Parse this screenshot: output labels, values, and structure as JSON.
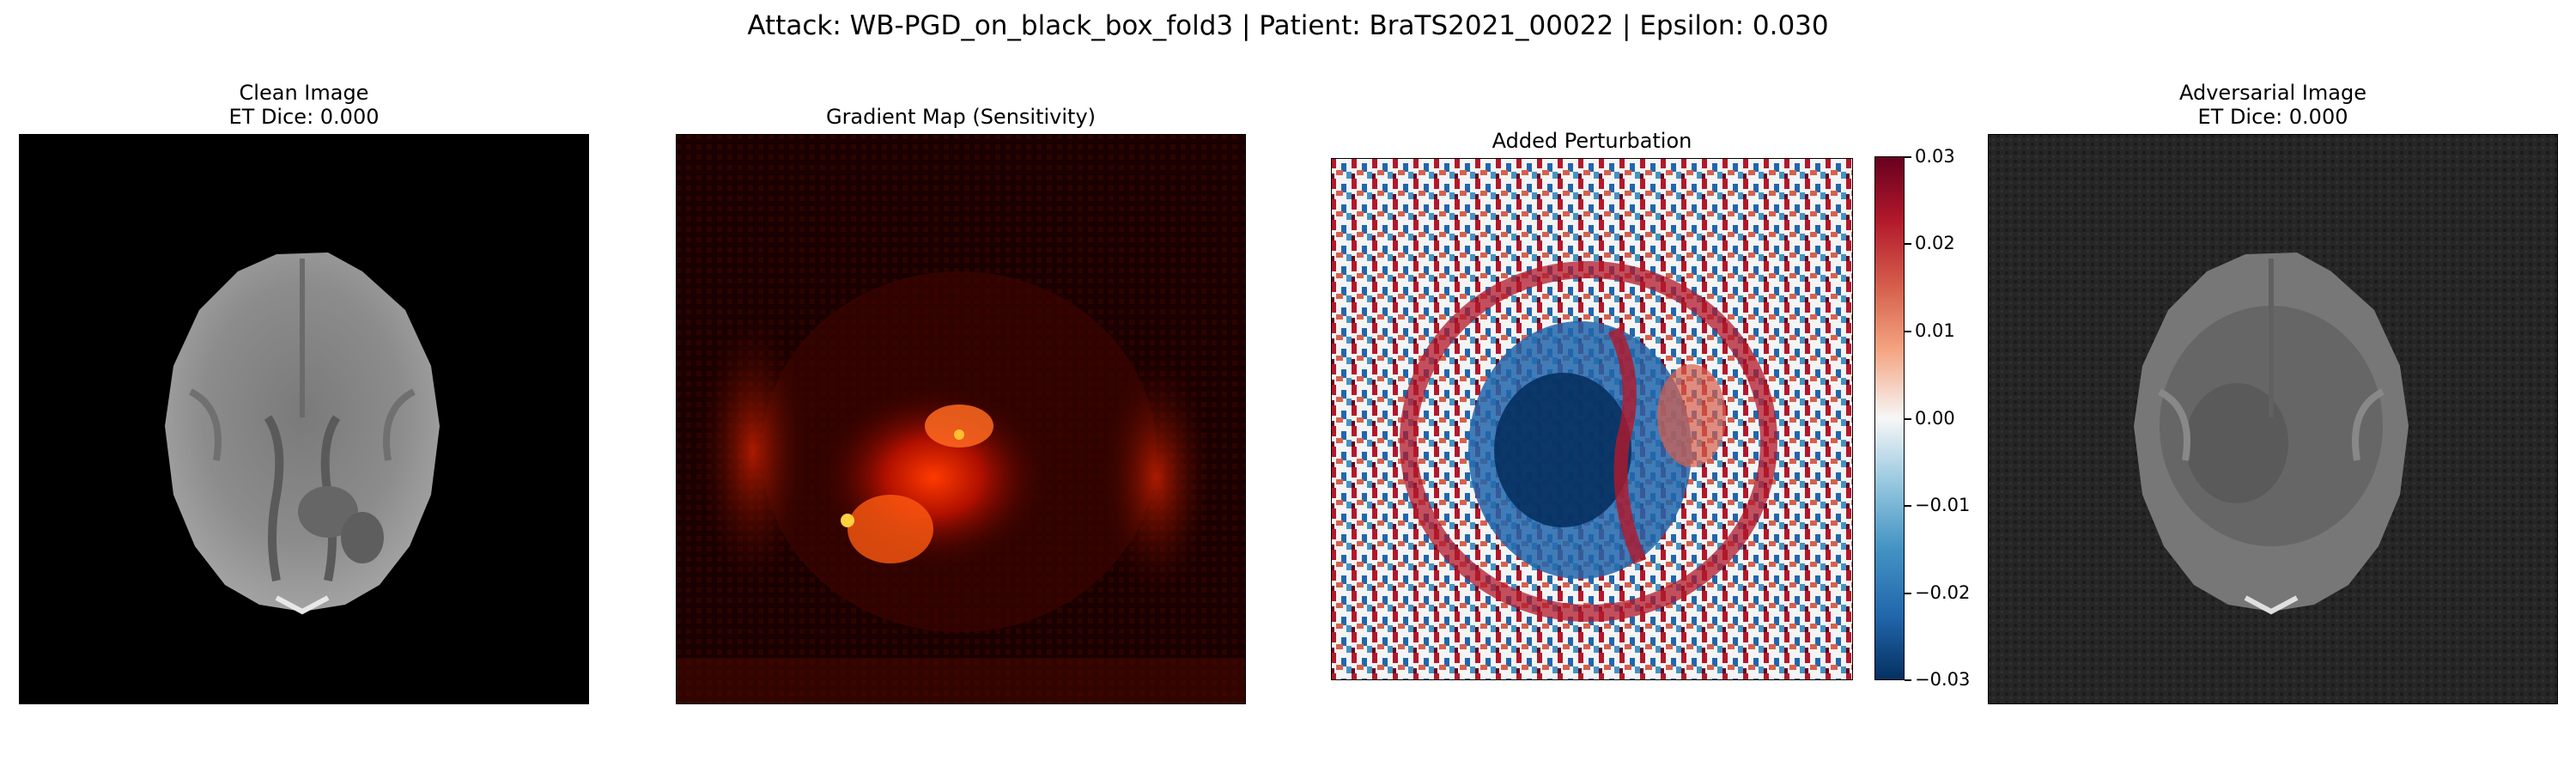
{
  "figure": {
    "suptitle": "Attack: WB-PGD_on_black_box_fold3 | Patient: BraTS2021_00022 | Epsilon: 0.030"
  },
  "panels": [
    {
      "title_line1": "Clean Image",
      "title_line2": "ET Dice: 0.000"
    },
    {
      "title_line1": "Gradient Map (Sensitivity)"
    },
    {
      "title_line1": "Added Perturbation"
    },
    {
      "title_line1": "Adversarial Image",
      "title_line2": "ET Dice: 0.000"
    }
  ],
  "colorbar": {
    "colormap": "RdBu_r",
    "range": [
      -0.03,
      0.03
    ],
    "ticks": [
      "0.03",
      "0.02",
      "0.01",
      "0.00",
      "−0.01",
      "−0.02",
      "−0.03"
    ],
    "colors": {
      "top": "#67001f",
      "mid": "#f7f7f7",
      "bottom": "#053061"
    }
  }
}
